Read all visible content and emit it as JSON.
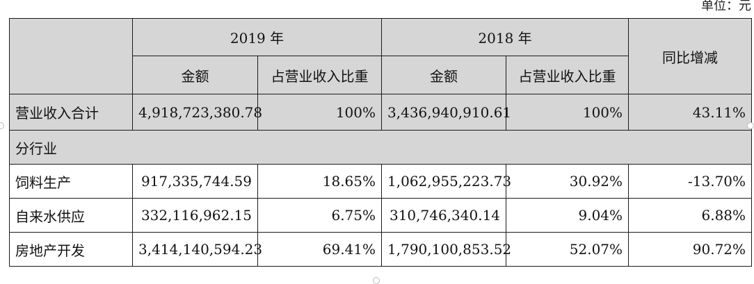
{
  "unit_note": "单位：元",
  "header": {
    "year_2019": "2019 年",
    "year_2018": "2018 年",
    "yoy": "同比增减",
    "amount": "金额",
    "ratio": "占营业收入比重"
  },
  "total_row": {
    "label": "营业收入合计",
    "amount_2019": "4,918,723,380.78",
    "ratio_2019": "100%",
    "amount_2018": "3,436,940,910.61",
    "ratio_2018": "100%",
    "yoy": "43.11%"
  },
  "section": {
    "label": "分行业"
  },
  "rows": [
    {
      "label": "饲料生产",
      "amount_2019": "917,335,744.59",
      "ratio_2019": "18.65%",
      "amount_2018": "1,062,955,223.73",
      "ratio_2018": "30.92%",
      "yoy": "-13.70%"
    },
    {
      "label": "自来水供应",
      "amount_2019": "332,116,962.15",
      "ratio_2019": "6.75%",
      "amount_2018": "310,746,340.14",
      "ratio_2018": "9.04%",
      "yoy": "6.88%"
    },
    {
      "label": "房地产开发",
      "amount_2019": "3,414,140,594.23",
      "ratio_2019": "69.41%",
      "amount_2018": "1,790,100,853.52",
      "ratio_2018": "52.07%",
      "yoy": "90.72%"
    }
  ]
}
